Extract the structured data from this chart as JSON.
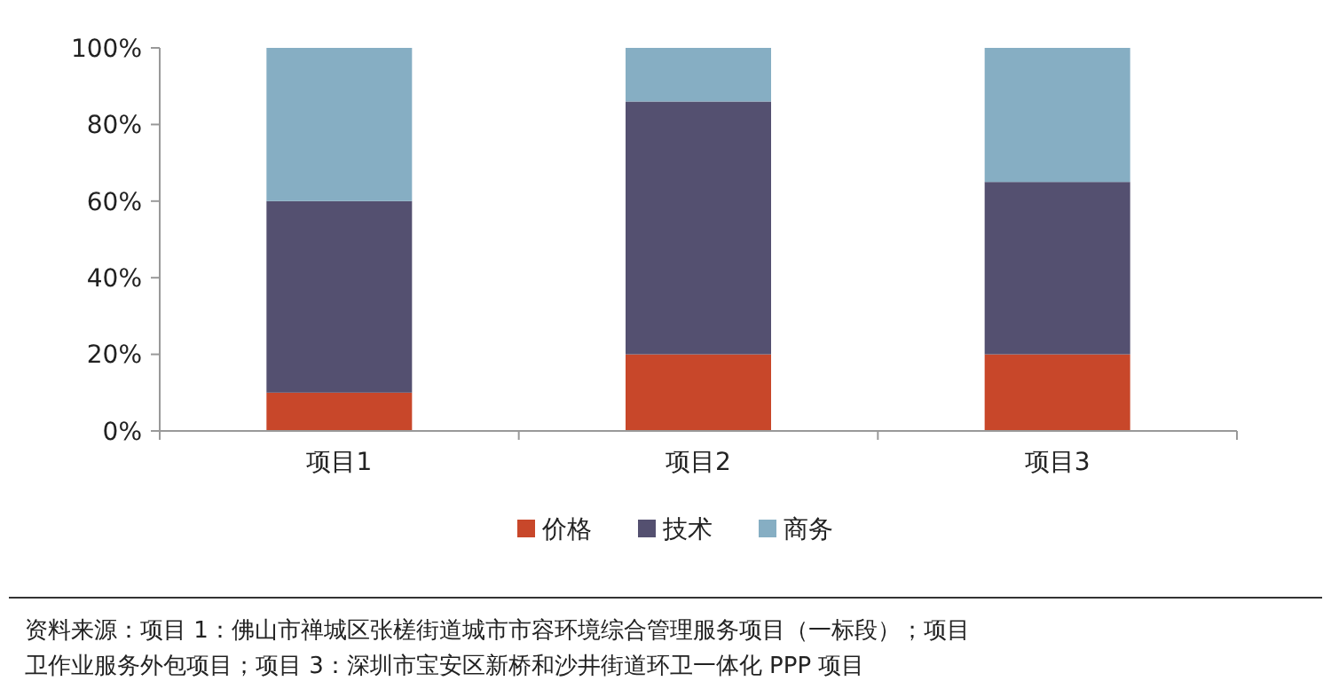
{
  "chart_data": {
    "type": "bar",
    "stacked": true,
    "categories": [
      "项目1",
      "项目2",
      "项目3"
    ],
    "series": [
      {
        "name": "价格",
        "color": "#c8472a",
        "values": [
          10,
          20,
          20
        ]
      },
      {
        "name": "技术",
        "color": "#545070",
        "values": [
          50,
          66,
          45
        ]
      },
      {
        "name": "商务",
        "color": "#86aec3",
        "values": [
          40,
          14,
          35
        ]
      }
    ],
    "ylim": [
      0,
      100
    ],
    "yticks": [
      {
        "value": 0,
        "label": "0%"
      },
      {
        "value": 20,
        "label": "20%"
      },
      {
        "value": 40,
        "label": "40%"
      },
      {
        "value": 60,
        "label": "60%"
      },
      {
        "value": 80,
        "label": "80%"
      },
      {
        "value": 100,
        "label": "100%"
      }
    ],
    "grid": false,
    "legend": "bottom",
    "annotations": [
      "资料来源：项目 1：佛山市禅城区张槎街道城市市容环境综合管理服务项目（一标段）；项目",
      "卫作业服务外包项目；项目 3：深圳市宝安区新桥和沙井街道环卫一体化 PPP 项目"
    ]
  }
}
